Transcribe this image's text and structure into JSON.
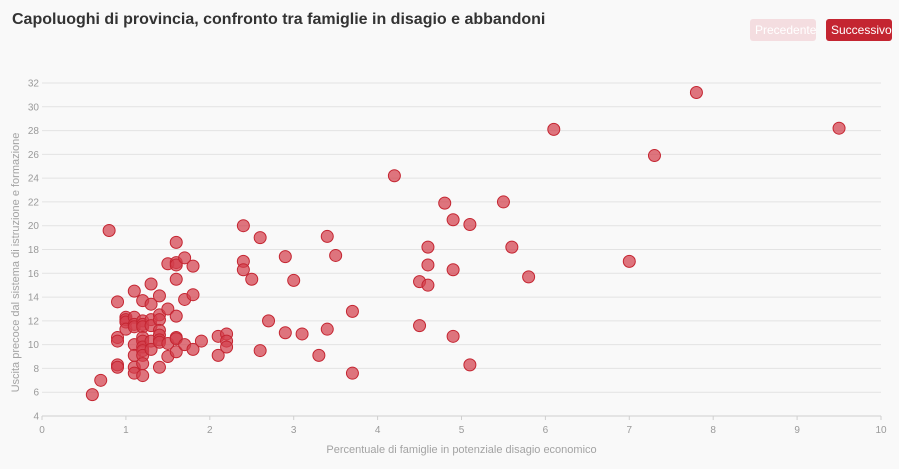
{
  "header": {
    "title": "Capoluoghi di provincia, confronto tra famiglie in disagio e abbandoni",
    "prev_label": "Precedente",
    "next_label": "Successivo"
  },
  "colors": {
    "point_fill": "#d2404c",
    "point_stroke": "#c42531",
    "grid": "#e3e3e3",
    "accent": "#c42531",
    "disabled": "#f4dde0"
  },
  "chart_data": {
    "type": "scatter",
    "title": "Capoluoghi di provincia, confronto tra famiglie in disagio e abbandoni",
    "xlabel": "Percentuale di famiglie in potenziale disagio economico",
    "ylabel": "Uscita precoce dal sistema di istruzione e formazione",
    "xlim": [
      0,
      10
    ],
    "ylim": [
      4,
      32
    ],
    "xticks": [
      0,
      1,
      2,
      3,
      4,
      5,
      6,
      7,
      8,
      9,
      10
    ],
    "yticks": [
      4,
      6,
      8,
      10,
      12,
      14,
      16,
      18,
      20,
      22,
      24,
      26,
      28,
      30,
      32
    ],
    "grid": "horizontal",
    "series": [
      {
        "points": [
          [
            0.6,
            5.8
          ],
          [
            0.7,
            7.0
          ],
          [
            0.8,
            19.6
          ],
          [
            0.9,
            13.6
          ],
          [
            0.9,
            10.6
          ],
          [
            0.9,
            10.3
          ],
          [
            0.9,
            8.3
          ],
          [
            0.9,
            8.1
          ],
          [
            1.0,
            12.3
          ],
          [
            1.0,
            12.1
          ],
          [
            1.0,
            11.9
          ],
          [
            1.0,
            11.3
          ],
          [
            1.1,
            14.5
          ],
          [
            1.1,
            12.3
          ],
          [
            1.1,
            11.7
          ],
          [
            1.1,
            11.5
          ],
          [
            1.1,
            10.0
          ],
          [
            1.1,
            9.1
          ],
          [
            1.1,
            8.1
          ],
          [
            1.1,
            7.6
          ],
          [
            1.2,
            13.7
          ],
          [
            1.2,
            12.0
          ],
          [
            1.2,
            11.7
          ],
          [
            1.2,
            11.5
          ],
          [
            1.2,
            10.6
          ],
          [
            1.2,
            10.3
          ],
          [
            1.2,
            9.8
          ],
          [
            1.2,
            9.5
          ],
          [
            1.2,
            9.1
          ],
          [
            1.2,
            8.4
          ],
          [
            1.2,
            7.4
          ],
          [
            1.3,
            15.1
          ],
          [
            1.3,
            13.4
          ],
          [
            1.3,
            12.1
          ],
          [
            1.3,
            11.6
          ],
          [
            1.3,
            10.3
          ],
          [
            1.3,
            9.6
          ],
          [
            1.4,
            14.1
          ],
          [
            1.4,
            12.5
          ],
          [
            1.4,
            12.1
          ],
          [
            1.4,
            11.2
          ],
          [
            1.4,
            10.8
          ],
          [
            1.4,
            10.4
          ],
          [
            1.4,
            10.2
          ],
          [
            1.4,
            8.1
          ],
          [
            1.5,
            16.8
          ],
          [
            1.5,
            13.0
          ],
          [
            1.5,
            10.1
          ],
          [
            1.5,
            9.0
          ],
          [
            1.6,
            18.6
          ],
          [
            1.6,
            16.9
          ],
          [
            1.6,
            16.7
          ],
          [
            1.6,
            15.5
          ],
          [
            1.6,
            12.4
          ],
          [
            1.6,
            10.6
          ],
          [
            1.6,
            10.5
          ],
          [
            1.6,
            9.4
          ],
          [
            1.7,
            17.3
          ],
          [
            1.7,
            13.8
          ],
          [
            1.7,
            10.0
          ],
          [
            1.8,
            16.6
          ],
          [
            1.8,
            14.2
          ],
          [
            1.8,
            9.6
          ],
          [
            1.9,
            10.3
          ],
          [
            2.1,
            10.7
          ],
          [
            2.1,
            9.1
          ],
          [
            2.2,
            10.9
          ],
          [
            2.2,
            10.3
          ],
          [
            2.2,
            9.8
          ],
          [
            2.4,
            20.0
          ],
          [
            2.4,
            17.0
          ],
          [
            2.4,
            16.3
          ],
          [
            2.5,
            15.5
          ],
          [
            2.6,
            19.0
          ],
          [
            2.6,
            9.5
          ],
          [
            2.7,
            12.0
          ],
          [
            2.9,
            17.4
          ],
          [
            2.9,
            11.0
          ],
          [
            3.0,
            15.4
          ],
          [
            3.1,
            10.9
          ],
          [
            3.3,
            9.1
          ],
          [
            3.4,
            19.1
          ],
          [
            3.4,
            11.3
          ],
          [
            3.5,
            17.5
          ],
          [
            3.7,
            12.8
          ],
          [
            3.7,
            7.6
          ],
          [
            4.2,
            24.2
          ],
          [
            4.5,
            15.3
          ],
          [
            4.5,
            11.6
          ],
          [
            4.6,
            18.2
          ],
          [
            4.6,
            16.7
          ],
          [
            4.6,
            15.0
          ],
          [
            4.8,
            21.9
          ],
          [
            4.9,
            20.5
          ],
          [
            4.9,
            16.3
          ],
          [
            4.9,
            10.7
          ],
          [
            5.1,
            20.1
          ],
          [
            5.1,
            8.3
          ],
          [
            5.5,
            22.0
          ],
          [
            5.6,
            18.2
          ],
          [
            5.8,
            15.7
          ],
          [
            6.1,
            28.1
          ],
          [
            7.0,
            17.0
          ],
          [
            7.3,
            25.9
          ],
          [
            7.8,
            31.2
          ],
          [
            9.5,
            28.2
          ]
        ]
      }
    ]
  }
}
